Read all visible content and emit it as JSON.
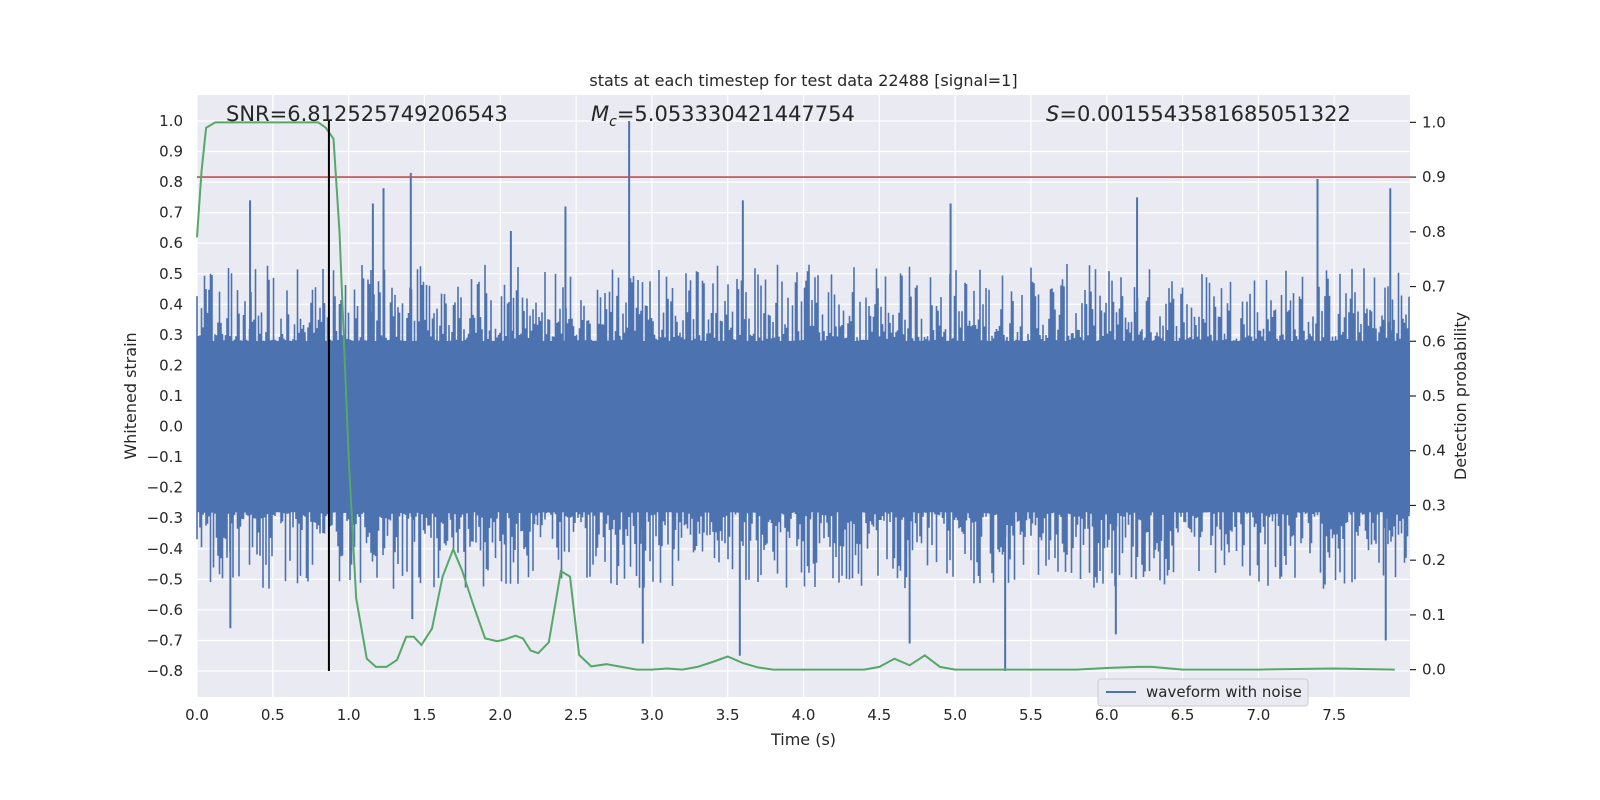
{
  "chart_data": {
    "type": "line",
    "title": "stats at each timestep for test data 22488 [signal=1]",
    "xlabel": "Time (s)",
    "ylabel_left": "Whitened strain",
    "ylabel_right": "Detection probability",
    "xlim": [
      0.0,
      8.0
    ],
    "ylim_left": [
      -0.885,
      1.085
    ],
    "ylim_right": [
      -0.05,
      1.05
    ],
    "x_ticks": [
      0.0,
      0.5,
      1.0,
      1.5,
      2.0,
      2.5,
      3.0,
      3.5,
      4.0,
      4.5,
      5.0,
      5.5,
      6.0,
      6.5,
      7.0,
      7.5
    ],
    "x_tick_labels": [
      "0.0",
      "0.5",
      "1.0",
      "1.5",
      "2.0",
      "2.5",
      "3.0",
      "3.5",
      "4.0",
      "4.5",
      "5.0",
      "5.5",
      "6.0",
      "6.5",
      "7.0",
      "7.5"
    ],
    "y_left_ticks": [
      -0.8,
      -0.7,
      -0.6,
      -0.5,
      -0.4,
      -0.3,
      -0.2,
      -0.1,
      0.0,
      0.1,
      0.2,
      0.3,
      0.4,
      0.5,
      0.6,
      0.7,
      0.8,
      0.9,
      1.0
    ],
    "y_left_tick_labels": [
      "−0.8",
      "−0.7",
      "−0.6",
      "−0.5",
      "−0.4",
      "−0.3",
      "−0.2",
      "−0.1",
      "0.0",
      "0.1",
      "0.2",
      "0.3",
      "0.4",
      "0.5",
      "0.6",
      "0.7",
      "0.8",
      "0.9",
      "1.0"
    ],
    "y_right_ticks": [
      0.0,
      0.1,
      0.2,
      0.3,
      0.4,
      0.5,
      0.6,
      0.7,
      0.8,
      0.9,
      1.0
    ],
    "y_right_tick_labels": [
      "0.0",
      "0.1",
      "0.2",
      "0.3",
      "0.4",
      "0.5",
      "0.6",
      "0.7",
      "0.8",
      "0.9",
      "1.0"
    ],
    "grid": true,
    "legend_placement": "lower-right",
    "annotations": {
      "snr": "SNR=6.812525749206543",
      "mc_symbol": "M",
      "mc_sub": "c",
      "mc_value": "=5.053330421447754",
      "s_symbol": "S",
      "s_value": "=0.0015543581685051322"
    },
    "threshold": {
      "y_right": 0.9,
      "color": "#c44e52"
    },
    "vertical_marker": {
      "x": 0.87,
      "color": "#000000"
    },
    "series": [
      {
        "name": "waveform with noise",
        "axis": "left",
        "color": "#4c72b0",
        "kind": "dense_noise",
        "envelope": {
          "core": 0.28,
          "typical_max": 0.5,
          "min": -0.8,
          "max": 1.0
        },
        "spikes": [
          {
            "x": 0.35,
            "y": 0.74
          },
          {
            "x": 1.41,
            "y": 0.83
          },
          {
            "x": 1.23,
            "y": 0.78
          },
          {
            "x": 1.16,
            "y": 0.73
          },
          {
            "x": 2.07,
            "y": 0.64
          },
          {
            "x": 2.43,
            "y": 0.72
          },
          {
            "x": 2.85,
            "y": 1.0
          },
          {
            "x": 3.6,
            "y": 0.74
          },
          {
            "x": 4.97,
            "y": 0.73
          },
          {
            "x": 6.2,
            "y": 0.75
          },
          {
            "x": 7.39,
            "y": 0.81
          },
          {
            "x": 7.87,
            "y": 0.78
          },
          {
            "x": 0.22,
            "y": -0.66
          },
          {
            "x": 2.94,
            "y": -0.71
          },
          {
            "x": 3.58,
            "y": -0.75
          },
          {
            "x": 4.7,
            "y": -0.71
          },
          {
            "x": 5.33,
            "y": -0.8
          },
          {
            "x": 7.84,
            "y": -0.7
          },
          {
            "x": 1.42,
            "y": -0.63
          },
          {
            "x": 6.06,
            "y": -0.68
          }
        ]
      },
      {
        "name": "",
        "axis": "right",
        "color": "#55a868",
        "x": [
          0.0,
          0.03,
          0.06,
          0.12,
          0.3,
          0.5,
          0.7,
          0.8,
          0.85,
          0.9,
          0.94,
          1.0,
          1.05,
          1.12,
          1.18,
          1.25,
          1.32,
          1.38,
          1.43,
          1.48,
          1.55,
          1.62,
          1.69,
          1.75,
          1.82,
          1.9,
          1.98,
          2.03,
          2.1,
          2.15,
          2.2,
          2.25,
          2.32,
          2.4,
          2.46,
          2.52,
          2.6,
          2.7,
          2.8,
          2.9,
          3.0,
          3.1,
          3.2,
          3.3,
          3.4,
          3.5,
          3.6,
          3.7,
          3.8,
          4.0,
          4.2,
          4.4,
          4.5,
          4.6,
          4.7,
          4.8,
          4.9,
          5.0,
          5.1,
          5.2,
          5.5,
          5.8,
          6.0,
          6.2,
          6.3,
          6.5,
          7.0,
          7.5,
          7.9
        ],
        "values": [
          0.79,
          0.91,
          0.99,
          1.0,
          1.0,
          1.0,
          1.0,
          1.0,
          0.99,
          0.97,
          0.8,
          0.39,
          0.13,
          0.02,
          0.005,
          0.005,
          0.018,
          0.06,
          0.06,
          0.045,
          0.075,
          0.17,
          0.22,
          0.18,
          0.12,
          0.057,
          0.052,
          0.055,
          0.062,
          0.057,
          0.035,
          0.03,
          0.05,
          0.18,
          0.17,
          0.027,
          0.006,
          0.01,
          0.005,
          0.0,
          0.0,
          0.002,
          0.0,
          0.005,
          0.014,
          0.024,
          0.012,
          0.004,
          0.0,
          0.0,
          0.0,
          0.0,
          0.005,
          0.02,
          0.008,
          0.026,
          0.005,
          0.0,
          0.0,
          0.0,
          0.0,
          0.0,
          0.003,
          0.005,
          0.005,
          0.0,
          0.0,
          0.002,
          0.0
        ]
      }
    ]
  }
}
